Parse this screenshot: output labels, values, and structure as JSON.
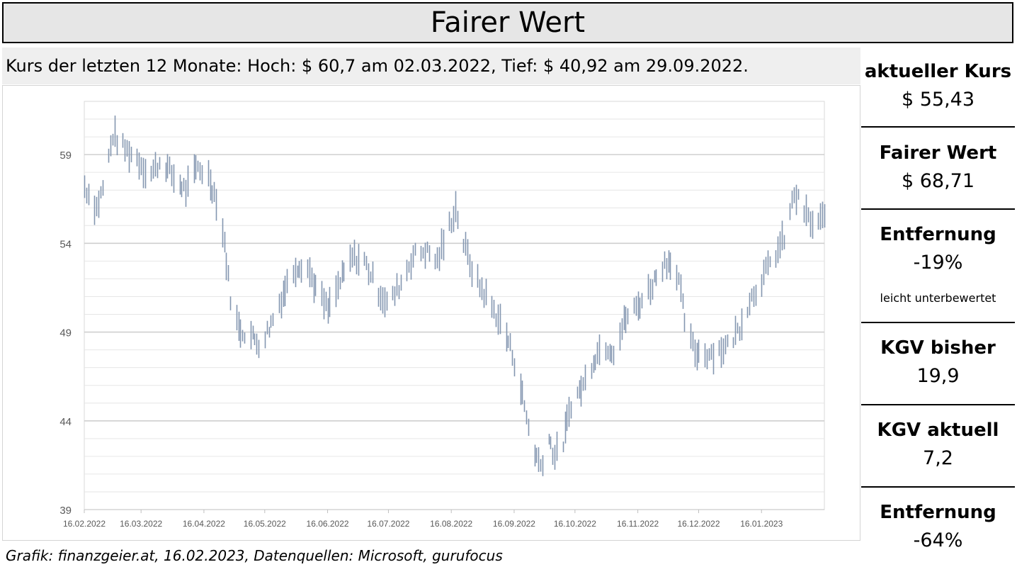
{
  "header": {
    "title": "Fairer Wert"
  },
  "subtitle": "Kurs der letzten 12 Monate: Hoch: $ 60,7 am 02.03.2022, Tief: $ 40,92 am 29.09.2022.",
  "footer": "Grafik: finanzgeier.at, 16.02.2023, Datenquellen: Microsoft, gurufocus",
  "stats": {
    "current_price_label": "aktueller Kurs",
    "current_price_value": "$ 55,43",
    "fair_value_label": "Fairer Wert",
    "fair_value_value": "$ 68,71",
    "distance1_label": "Entfernung",
    "distance1_value": "-19%",
    "distance1_note": "leicht unterbewertet",
    "pe_past_label": "KGV bisher",
    "pe_past_value": "19,9",
    "pe_current_label": "KGV aktuell",
    "pe_current_value": "7,2",
    "distance2_label": "Entfernung",
    "distance2_value": "-64%"
  },
  "chart_data": {
    "type": "ohlc",
    "title": "",
    "xlabel": "",
    "ylabel": "",
    "ylim": [
      39,
      62
    ],
    "yticks": [
      39,
      44,
      49,
      54,
      59
    ],
    "ytick_labels": [
      "39",
      "44",
      "49",
      "54",
      "59"
    ],
    "xtick_labels": [
      "16.02.2022",
      "16.03.2022",
      "16.04.2022",
      "16.05.2022",
      "16.06.2022",
      "16.07.2022",
      "16.08.2022",
      "16.09.2022",
      "16.10.2022",
      "16.11.2022",
      "16.12.2022",
      "16.01.2023"
    ],
    "grid": true,
    "bar_color": "#8496b0",
    "x_start": "16.02.2022",
    "x_end": "16.02.2023",
    "price_path": [
      [
        "16.02.2022",
        57.2
      ],
      [
        "22.02.2022",
        56.0
      ],
      [
        "26.02.2022",
        57.5
      ],
      [
        "02.03.2022",
        60.1
      ],
      [
        "08.03.2022",
        59.3
      ],
      [
        "14.03.2022",
        58.8
      ],
      [
        "20.03.2022",
        57.8
      ],
      [
        "26.03.2022",
        58.7
      ],
      [
        "01.04.2022",
        57.7
      ],
      [
        "07.04.2022",
        57.0
      ],
      [
        "13.04.2022",
        58.3
      ],
      [
        "18.04.2022",
        57.8
      ],
      [
        "22.04.2022",
        56.5
      ],
      [
        "26.04.2022",
        54.0
      ],
      [
        "29.04.2022",
        51.0
      ],
      [
        "03.05.2022",
        49.2
      ],
      [
        "09.05.2022",
        48.8
      ],
      [
        "14.05.2022",
        48.3
      ],
      [
        "19.05.2022",
        49.5
      ],
      [
        "25.05.2022",
        51.2
      ],
      [
        "31.05.2022",
        52.7
      ],
      [
        "05.06.2022",
        52.9
      ],
      [
        "10.06.2022",
        51.5
      ],
      [
        "16.06.2022",
        50.2
      ],
      [
        "22.06.2022",
        51.8
      ],
      [
        "28.06.2022",
        53.2
      ],
      [
        "04.07.2022",
        53.0
      ],
      [
        "10.07.2022",
        51.5
      ],
      [
        "16.07.2022",
        50.5
      ],
      [
        "22.07.2022",
        51.8
      ],
      [
        "28.07.2022",
        53.3
      ],
      [
        "03.08.2022",
        53.6
      ],
      [
        "09.08.2022",
        53.0
      ],
      [
        "15.08.2022",
        55.0
      ],
      [
        "18.08.2022",
        56.0
      ],
      [
        "22.08.2022",
        54.0
      ],
      [
        "27.08.2022",
        52.2
      ],
      [
        "02.09.2022",
        51.0
      ],
      [
        "08.09.2022",
        49.8
      ],
      [
        "13.09.2022",
        48.5
      ],
      [
        "17.09.2022",
        47.0
      ],
      [
        "21.09.2022",
        44.8
      ],
      [
        "25.09.2022",
        42.5
      ],
      [
        "29.09.2022",
        41.5
      ],
      [
        "03.10.2022",
        43.0
      ],
      [
        "06.10.2022",
        42.0
      ],
      [
        "10.10.2022",
        42.8
      ],
      [
        "14.10.2022",
        45.0
      ],
      [
        "20.10.2022",
        46.0
      ],
      [
        "25.10.2022",
        47.5
      ],
      [
        "30.10.2022",
        48.3
      ],
      [
        "04.11.2022",
        48.0
      ],
      [
        "10.11.2022",
        49.8
      ],
      [
        "16.11.2022",
        50.5
      ],
      [
        "22.11.2022",
        51.5
      ],
      [
        "28.11.2022",
        52.8
      ],
      [
        "02.12.2022",
        53.1
      ],
      [
        "06.12.2022",
        51.8
      ],
      [
        "10.12.2022",
        49.0
      ],
      [
        "14.12.2022",
        47.9
      ],
      [
        "20.12.2022",
        47.8
      ],
      [
        "26.12.2022",
        48.0
      ],
      [
        "31.12.2022",
        48.3
      ],
      [
        "05.01.2023",
        49.3
      ],
      [
        "10.01.2023",
        50.8
      ],
      [
        "16.01.2023",
        52.0
      ],
      [
        "22.01.2023",
        53.2
      ],
      [
        "28.01.2023",
        54.5
      ],
      [
        "01.02.2023",
        56.8
      ],
      [
        "06.02.2023",
        55.8
      ],
      [
        "10.02.2023",
        55.0
      ],
      [
        "16.02.2023",
        55.4
      ]
    ]
  }
}
